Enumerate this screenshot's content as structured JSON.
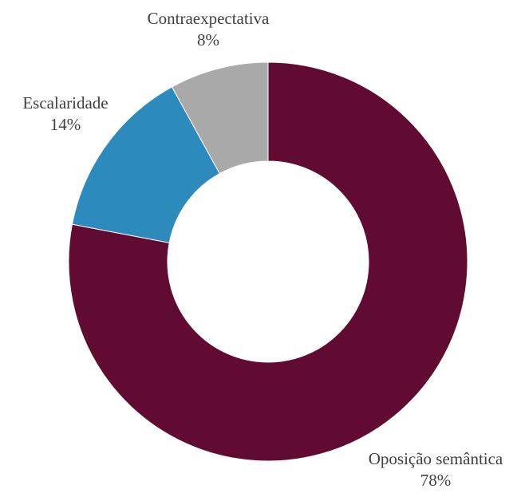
{
  "chart_data": {
    "type": "pie",
    "donut": true,
    "slices": [
      {
        "label": "Oposição semântica",
        "value": 78,
        "display": "78%",
        "color": "#610b33"
      },
      {
        "label": "Escalaridade",
        "value": 14,
        "display": "14%",
        "color": "#2c8abc"
      },
      {
        "label": "Contraexpectativa",
        "value": 8,
        "display": "8%",
        "color": "#a9a9a9"
      }
    ],
    "start": "12 o'clock, clockwise",
    "legend": "none (data labels beside slices)"
  }
}
